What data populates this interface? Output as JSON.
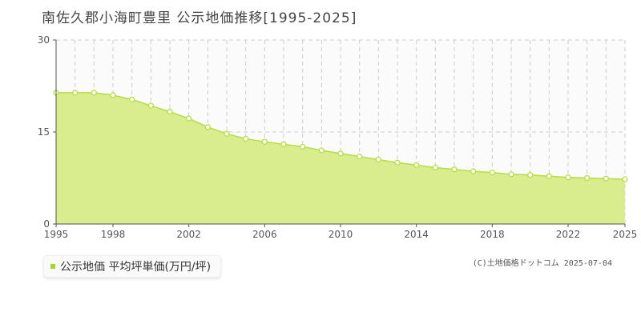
{
  "colors": {
    "fill": "#d9ec8e",
    "line": "#b7dc44",
    "marker_fill": "#ffffff",
    "marker_stroke": "#b7dc44",
    "legend_swatch": "#a8d22e",
    "grid": "#cccccc",
    "axis": "#555555"
  },
  "legend": {
    "label": "公示地価 平均坪単価(万円/坪)"
  },
  "copyright": "(C)土地価格ドットコム 2025-07-04",
  "chart_data": {
    "type": "area",
    "title": "南佐久郡小海町豊里 公示地価推移[1995-2025]",
    "xlabel": "",
    "ylabel": "",
    "ylim": [
      0,
      30
    ],
    "yticks": [
      0,
      15,
      30
    ],
    "xlim": [
      1995,
      2025
    ],
    "xticks": [
      1995,
      1998,
      2002,
      2006,
      2010,
      2014,
      2018,
      2022,
      2025
    ],
    "grid": true,
    "legend_position": "bottom-left",
    "series": [
      {
        "name": "公示地価 平均坪単価(万円/坪)",
        "x": [
          1995,
          1996,
          1997,
          1998,
          1999,
          2000,
          2001,
          2002,
          2003,
          2004,
          2005,
          2006,
          2007,
          2008,
          2009,
          2010,
          2011,
          2012,
          2013,
          2014,
          2015,
          2016,
          2017,
          2018,
          2019,
          2020,
          2021,
          2022,
          2023,
          2024,
          2025
        ],
        "values": [
          21.4,
          21.4,
          21.4,
          21.0,
          20.3,
          19.3,
          18.3,
          17.2,
          15.8,
          14.7,
          13.9,
          13.4,
          13.0,
          12.6,
          12.0,
          11.5,
          11.0,
          10.5,
          10.0,
          9.6,
          9.2,
          8.9,
          8.6,
          8.4,
          8.1,
          8.0,
          7.8,
          7.6,
          7.5,
          7.4,
          7.3
        ]
      }
    ]
  }
}
